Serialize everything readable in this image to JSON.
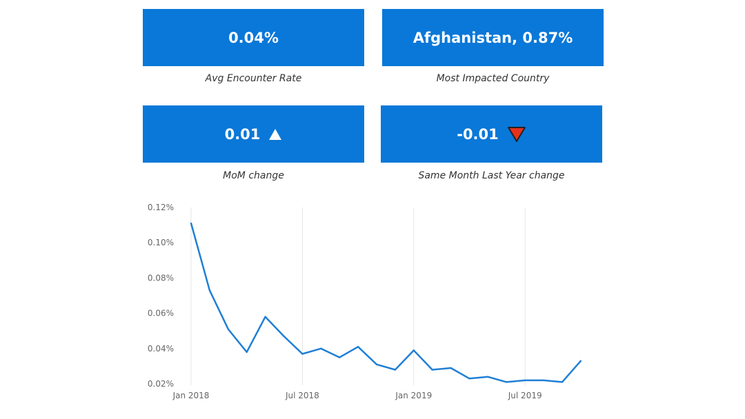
{
  "kpis": [
    {
      "value": "0.04%",
      "caption": "Avg Encounter Rate"
    },
    {
      "value": "Afghanistan, 0.87%",
      "caption": "Most Impacted Country"
    },
    {
      "value": "0.01",
      "trend": "up",
      "caption": "MoM change"
    },
    {
      "value": "-0.01",
      "trend": "down",
      "caption": "Same Month Last Year change"
    }
  ],
  "colors": {
    "card_bg": "#0a78d8",
    "line": "#1f7fd6",
    "up_triangle": "#ffffff",
    "down_triangle": "#e8311a",
    "grid": "#e6e6e6"
  },
  "chart_data": {
    "type": "line",
    "x": [
      "Jan 2018",
      "Feb 2018",
      "Mar 2018",
      "Apr 2018",
      "May 2018",
      "Jun 2018",
      "Jul 2018",
      "Aug 2018",
      "Sep 2018",
      "Oct 2018",
      "Nov 2018",
      "Dec 2018",
      "Jan 2019",
      "Feb 2019",
      "Mar 2019",
      "Apr 2019",
      "May 2019",
      "Jun 2019",
      "Jul 2019",
      "Aug 2019",
      "Sep 2019",
      "Oct 2019"
    ],
    "series": [
      {
        "values": [
          0.111,
          0.073,
          0.051,
          0.038,
          0.058,
          0.047,
          0.037,
          0.04,
          0.035,
          0.041,
          0.031,
          0.028,
          0.039,
          0.028,
          0.029,
          0.023,
          0.024,
          0.021,
          0.022,
          0.022,
          0.021,
          0.033
        ]
      }
    ],
    "xticks": [
      "Jan 2018",
      "Jul 2018",
      "Jan 2019",
      "Jul 2019"
    ],
    "yticks": [
      "0.02%",
      "0.04%",
      "0.06%",
      "0.08%",
      "0.10%",
      "0.12%"
    ],
    "ylim": [
      0.02,
      0.12
    ],
    "ytick_values": [
      0.02,
      0.04,
      0.06,
      0.08,
      0.1,
      0.12
    ],
    "title": "",
    "xlabel": "",
    "ylabel": "",
    "grid": "vertical",
    "legend": "none"
  }
}
